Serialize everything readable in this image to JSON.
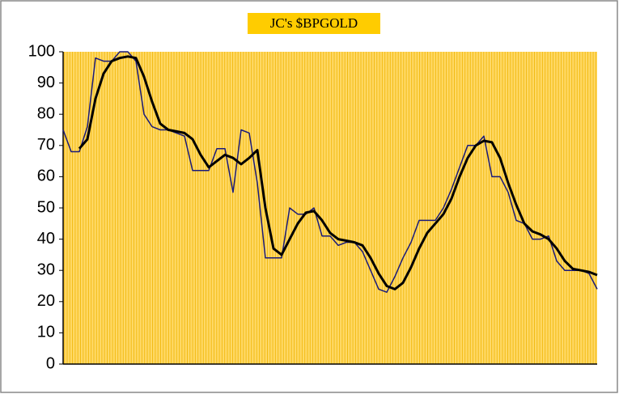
{
  "chart_data": {
    "type": "line",
    "title": "JC's $BPGOLD",
    "series": [
      {
        "name": null,
        "color": "#1a1a7a",
        "width": 1.5,
        "values": [
          75,
          68,
          68,
          76,
          98,
          97,
          97,
          100,
          100,
          97,
          80,
          76,
          75,
          75,
          74,
          73,
          62,
          62,
          62,
          69,
          69,
          55,
          75,
          74,
          58,
          34,
          34,
          34,
          50,
          48,
          48,
          50,
          41,
          41,
          38,
          39,
          39,
          36,
          30,
          24,
          23,
          28,
          34,
          39,
          46,
          46,
          46,
          50,
          56,
          63,
          70,
          70,
          73,
          60,
          60,
          55,
          46,
          45,
          40,
          40,
          41,
          33,
          30,
          30,
          30,
          29,
          24
        ]
      },
      {
        "name": null,
        "color": "#000000",
        "width": 3,
        "values": [
          null,
          null,
          69,
          72,
          85,
          93,
          97,
          98,
          98.5,
          98,
          92,
          84,
          77,
          75,
          74.5,
          74,
          72,
          67,
          63,
          65,
          67,
          66,
          64,
          66,
          68.5,
          50,
          37,
          35,
          40,
          45,
          48.5,
          49,
          46,
          42,
          40,
          39.5,
          39,
          38,
          34,
          29,
          25,
          24,
          26,
          31,
          37,
          42,
          45,
          48,
          53,
          60,
          66,
          70,
          71.5,
          71,
          66,
          58,
          51,
          45,
          42.5,
          41.5,
          40,
          37,
          33,
          30.5,
          30,
          29.5,
          28.5
        ]
      }
    ],
    "ylim": [
      0,
      100
    ],
    "yticks": [
      0,
      10,
      20,
      30,
      40,
      50,
      60,
      70,
      80,
      90,
      100
    ],
    "background": "#ffd966"
  }
}
